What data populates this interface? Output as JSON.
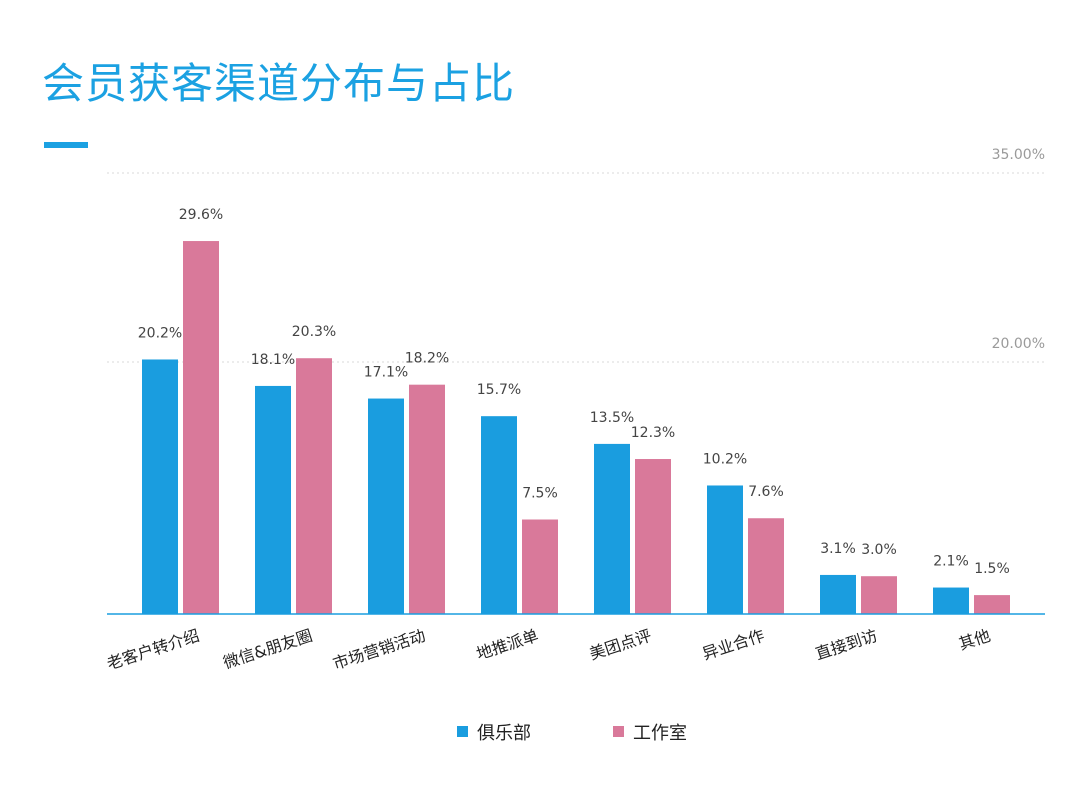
{
  "page": {
    "title": "会员获客渠道分布与占比"
  },
  "chart_data": {
    "type": "bar",
    "categories": [
      "老客户转介绍",
      "微信&朋友圈",
      "市场营销活动",
      "地推派单",
      "美团点评",
      "异业合作",
      "直接到访",
      "其他"
    ],
    "series": [
      {
        "name": "俱乐部",
        "color": "#1a9ddf",
        "values": [
          20.2,
          18.1,
          17.1,
          15.7,
          13.5,
          10.2,
          3.1,
          2.1
        ],
        "labels": [
          "20.2%",
          "18.1%",
          "17.1%",
          "15.7%",
          "13.5%",
          "10.2%",
          "3.1%",
          "2.1%"
        ]
      },
      {
        "name": "工作室",
        "color": "#d9799a",
        "values": [
          29.6,
          20.3,
          18.2,
          7.5,
          12.3,
          7.6,
          3.0,
          1.5
        ],
        "labels": [
          "29.6%",
          "20.3%",
          "18.2%",
          "7.5%",
          "12.3%",
          "7.6%",
          "3.0%",
          "1.5%"
        ]
      }
    ],
    "yticks": [
      {
        "value": 20,
        "label": "20.00%"
      },
      {
        "value": 35,
        "label": "35.00%"
      }
    ],
    "ylim": [
      0,
      35
    ],
    "grid": "dotted horizontal",
    "legend": "bottom-center",
    "title": "",
    "xlabel": "",
    "ylabel": ""
  }
}
